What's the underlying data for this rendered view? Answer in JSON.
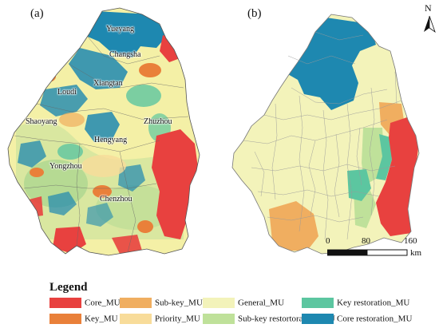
{
  "panel_a": {
    "label": "(a)",
    "cities": [
      {
        "name": "Yueyang"
      },
      {
        "name": "Changsha"
      },
      {
        "name": "Xiangtan"
      },
      {
        "name": "Loudi"
      },
      {
        "name": "Shaoyang"
      },
      {
        "name": "Zhuzhou"
      },
      {
        "name": "Hengyang"
      },
      {
        "name": "Yongzhou"
      },
      {
        "name": "Chenzhou"
      }
    ]
  },
  "panel_b": {
    "label": "(b)",
    "north_arrow": "N",
    "scale_labels": [
      "0",
      "80",
      "160",
      "km"
    ]
  },
  "legend": {
    "title": "Legend",
    "items": [
      {
        "label": "Core_MU",
        "color": "#e8413f"
      },
      {
        "label": "Key_MU",
        "color": "#e9803a"
      },
      {
        "label": "Sub-key_MU",
        "color": "#f0ae60"
      },
      {
        "label": "Priority_MU",
        "color": "#f8dc9a"
      },
      {
        "label": "General_MU",
        "color": "#f3f3ba"
      },
      {
        "label": "Sub-key restortoration_MU",
        "color": "#bfe19a"
      },
      {
        "label": "Key restoration_MU",
        "color": "#5cc6a0"
      },
      {
        "label": "Core restoration_MU",
        "color": "#1e88b0"
      }
    ]
  }
}
